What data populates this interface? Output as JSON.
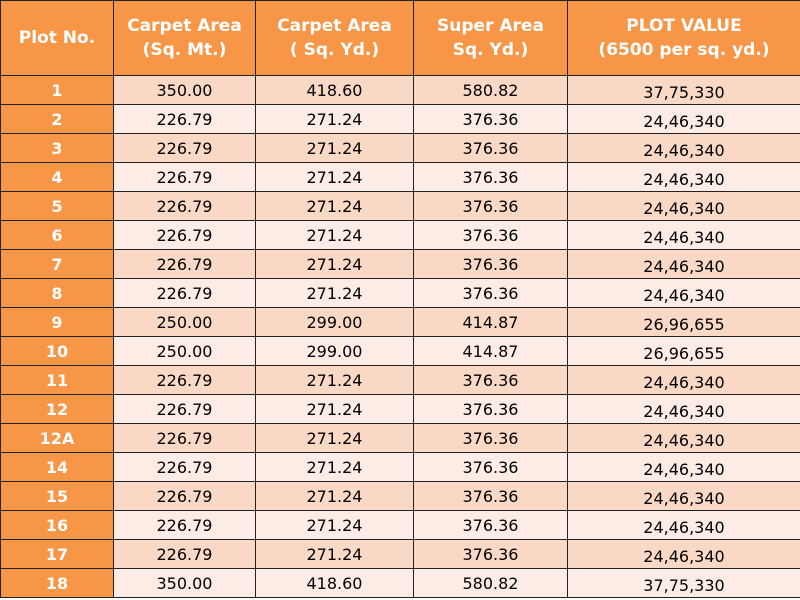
{
  "table": {
    "header": [
      [
        "Plot No."
      ],
      [
        "Carpet Area",
        "(Sq. Mt.)"
      ],
      [
        "Carpet Area",
        "( Sq. Yd.)"
      ],
      [
        "Super Area",
        "Sq. Yd.)"
      ],
      [
        "PLOT VALUE",
        "(6500 per sq. yd.)"
      ]
    ],
    "rows": [
      [
        "1",
        "350.00",
        "418.60",
        "580.82",
        "37,75,330"
      ],
      [
        "2",
        "226.79",
        "271.24",
        "376.36",
        "24,46,340"
      ],
      [
        "3",
        "226.79",
        "271.24",
        "376.36",
        "24,46,340"
      ],
      [
        "4",
        "226.79",
        "271.24",
        "376.36",
        "24,46,340"
      ],
      [
        "5",
        "226.79",
        "271.24",
        "376.36",
        "24,46,340"
      ],
      [
        "6",
        "226.79",
        "271.24",
        "376.36",
        "24,46,340"
      ],
      [
        "7",
        "226.79",
        "271.24",
        "376.36",
        "24,46,340"
      ],
      [
        "8",
        "226.79",
        "271.24",
        "376.36",
        "24,46,340"
      ],
      [
        "9",
        "250.00",
        "299.00",
        "414.87",
        "26,96,655"
      ],
      [
        "10",
        "250.00",
        "299.00",
        "414.87",
        "26,96,655"
      ],
      [
        "11",
        "226.79",
        "271.24",
        "376.36",
        "24,46,340"
      ],
      [
        "12",
        "226.79",
        "271.24",
        "376.36",
        "24,46,340"
      ],
      [
        "12A",
        "226.79",
        "271.24",
        "376.36",
        "24,46,340"
      ],
      [
        "14",
        "226.79",
        "271.24",
        "376.36",
        "24,46,340"
      ],
      [
        "15",
        "226.79",
        "271.24",
        "376.36",
        "24,46,340"
      ],
      [
        "16",
        "226.79",
        "271.24",
        "376.36",
        "24,46,340"
      ],
      [
        "17",
        "226.79",
        "271.24",
        "376.36",
        "24,46,340"
      ],
      [
        "18",
        "350.00",
        "418.60",
        "580.82",
        "37,75,330"
      ]
    ]
  }
}
